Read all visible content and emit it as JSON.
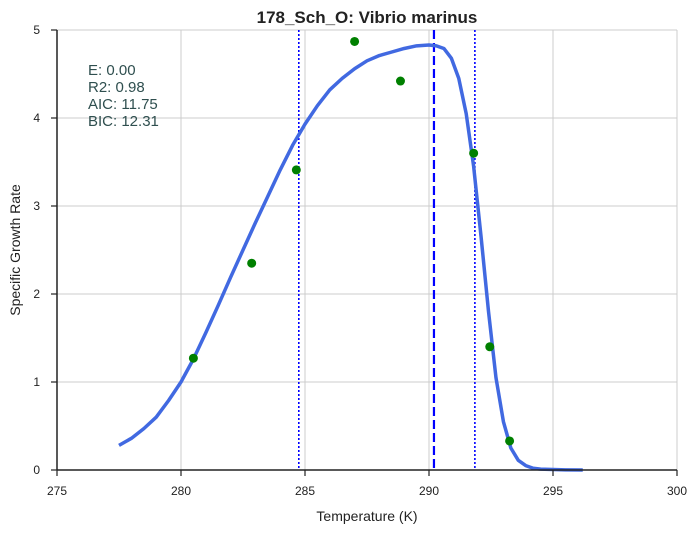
{
  "chart_data": {
    "type": "scatter",
    "title": "178_Sch_O: Vibrio marinus",
    "xlabel": "Temperature (K)",
    "ylabel": "Specific Growth Rate",
    "xlim": [
      275,
      300
    ],
    "ylim": [
      0,
      5
    ],
    "xticks": [
      "275",
      "280",
      "285",
      "290",
      "295",
      "300"
    ],
    "yticks": [
      "0",
      "1",
      "2",
      "3",
      "4",
      "5"
    ],
    "grid": true,
    "points": {
      "color": "#008000",
      "x": [
        280.5,
        282.85,
        284.65,
        287.0,
        288.85,
        291.8,
        292.45,
        293.25
      ],
      "y": [
        1.27,
        2.35,
        3.41,
        4.87,
        4.42,
        3.6,
        1.4,
        0.33
      ]
    },
    "fit_curve": {
      "color": "#4169e1",
      "x": [
        277.5,
        278.0,
        278.5,
        279.0,
        279.5,
        280.0,
        280.5,
        281.0,
        281.5,
        282.0,
        282.5,
        283.0,
        283.5,
        284.0,
        284.5,
        285.0,
        285.5,
        286.0,
        286.5,
        287.0,
        287.5,
        288.0,
        288.5,
        289.0,
        289.5,
        290.0,
        290.3,
        290.6,
        290.9,
        291.2,
        291.5,
        291.8,
        292.1,
        292.4,
        292.7,
        293.0,
        293.3,
        293.6,
        293.9,
        294.2,
        294.5,
        295.0,
        295.5,
        296.2
      ],
      "y": [
        0.28,
        0.36,
        0.47,
        0.6,
        0.79,
        1.0,
        1.26,
        1.56,
        1.87,
        2.19,
        2.5,
        2.81,
        3.11,
        3.41,
        3.69,
        3.93,
        4.14,
        4.32,
        4.45,
        4.56,
        4.65,
        4.71,
        4.75,
        4.79,
        4.82,
        4.83,
        4.82,
        4.79,
        4.68,
        4.45,
        4.05,
        3.45,
        2.65,
        1.8,
        1.05,
        0.55,
        0.25,
        0.11,
        0.05,
        0.02,
        0.01,
        0.005,
        0.002,
        0.0
      ]
    },
    "vlines": [
      {
        "x": 284.75,
        "style": "dotted",
        "color": "#0000ff"
      },
      {
        "x": 290.2,
        "style": "dashed",
        "color": "#0000ff"
      },
      {
        "x": 291.85,
        "style": "dotted",
        "color": "#0000ff"
      }
    ],
    "annotations": [
      "E:  0.00",
      "R2:  0.98",
      "AIC: 11.75",
      "BIC: 12.31"
    ]
  }
}
